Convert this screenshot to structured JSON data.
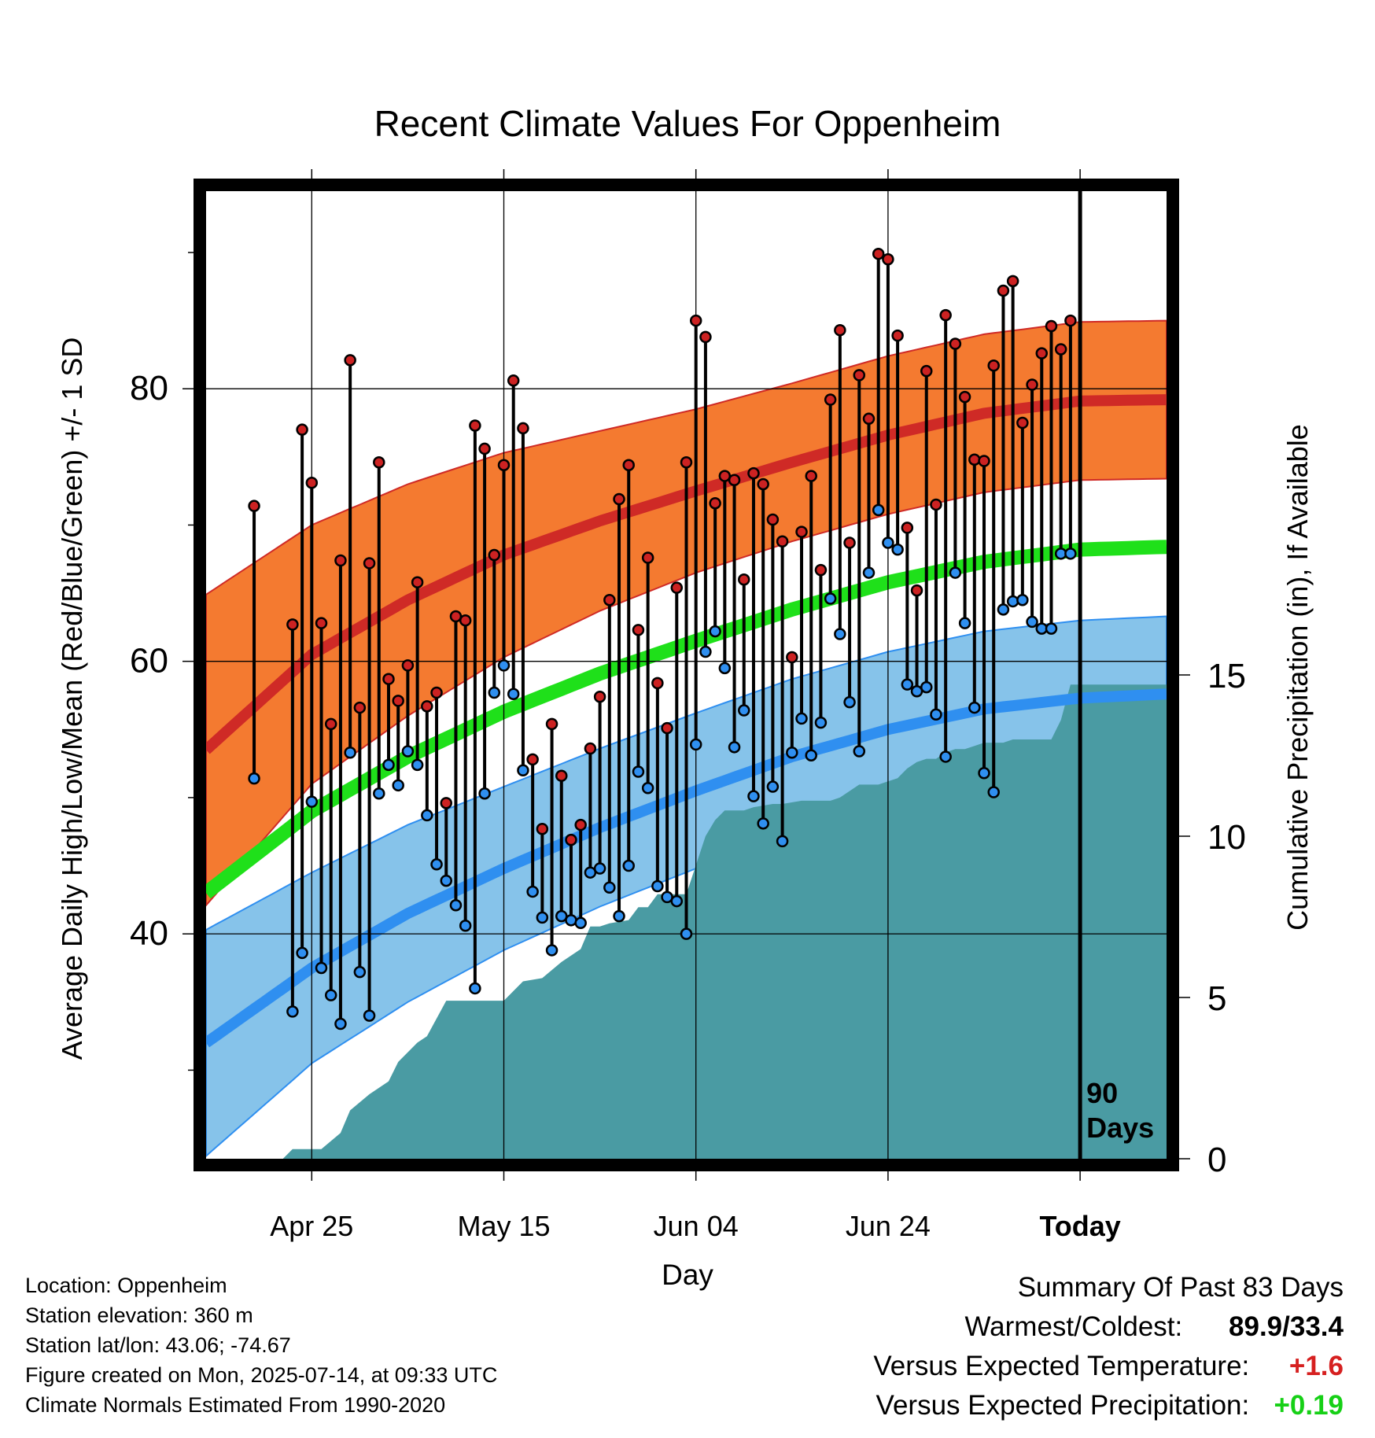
{
  "chart_data": {
    "type": "line",
    "title": "Recent Climate Values For Oppenheim",
    "xlabel": "Day",
    "ylabel": "Average Daily High/Low/Mean (Red/Blue/Green) +/- 1 SD",
    "y2label": "Cumulative Precipitation (in), If Available",
    "x_tick_labels": [
      "Apr 25",
      "May 15",
      "Jun 04",
      "Jun 24",
      "Today"
    ],
    "x_tick_days": [
      -80,
      -60,
      -40,
      -20,
      0
    ],
    "xlim": [
      -91,
      9
    ],
    "y_ticks": [
      40,
      60,
      80
    ],
    "ylim": [
      23.5,
      94.5
    ],
    "y2_ticks": [
      0,
      5,
      10,
      15
    ],
    "y2lim": [
      0,
      30
    ],
    "marker_label": "90 Days",
    "marker_day": 0,
    "grid": true,
    "colors": {
      "high": "#cf2a26",
      "high_band": "#f47a30",
      "low": "#2f8ff0",
      "low_band": "#86c3ea",
      "mean": "#1fe01a",
      "precip": "#4a9ba3",
      "dot_high": "#cc2222",
      "dot_low": "#2f8ff0"
    },
    "normals": {
      "days": [
        -91,
        -80,
        -70,
        -60,
        -50,
        -40,
        -30,
        -20,
        -10,
        0,
        9
      ],
      "high_mean": [
        53.5,
        60.5,
        64.5,
        67.8,
        70.3,
        72.5,
        74.6,
        76.6,
        78.2,
        79.1,
        79.2
      ],
      "high_sd": [
        11.4,
        9.5,
        8.5,
        7.5,
        6.6,
        6.0,
        5.8,
        5.8,
        5.8,
        5.8,
        5.8
      ],
      "low_mean": [
        32.0,
        37.5,
        41.5,
        44.8,
        47.8,
        50.5,
        53.0,
        55.0,
        56.5,
        57.3,
        57.6
      ],
      "low_sd": [
        8.3,
        7.0,
        6.5,
        6.0,
        5.8,
        5.7,
        5.7,
        5.7,
        5.7,
        5.7,
        5.7
      ],
      "mean": [
        43.0,
        49.0,
        53.0,
        56.3,
        59.1,
        61.5,
        63.8,
        65.8,
        67.3,
        68.2,
        68.4
      ]
    },
    "series": [
      {
        "name": "High",
        "x": [
          -86,
          -82,
          -81,
          -80,
          -79,
          -78,
          -77,
          -76,
          -75,
          -74,
          -73,
          -72,
          -71,
          -70,
          -69,
          -68,
          -67,
          -66,
          -65,
          -64,
          -63,
          -62,
          -61,
          -60,
          -59,
          -58,
          -57,
          -56,
          -55,
          -54,
          -53,
          -52,
          -51,
          -50,
          -49,
          -48,
          -47,
          -46,
          -45,
          -44,
          -43,
          -42,
          -41,
          -40,
          -39,
          -38,
          -37,
          -36,
          -35,
          -34,
          -33,
          -32,
          -31,
          -30,
          -29,
          -28,
          -27,
          -26,
          -25,
          -24,
          -23,
          -22,
          -21,
          -20,
          -19,
          -18,
          -17,
          -16,
          -15,
          -14,
          -13,
          -12,
          -11,
          -10,
          -9,
          -8,
          -7,
          -6,
          -5,
          -4,
          -3,
          -2,
          -1
        ],
        "values": [
          71.4,
          62.7,
          77.0,
          73.1,
          62.8,
          55.4,
          67.4,
          82.1,
          56.6,
          67.2,
          74.6,
          58.7,
          57.1,
          59.7,
          65.8,
          56.7,
          57.7,
          49.6,
          63.3,
          63.0,
          77.3,
          75.6,
          67.8,
          74.4,
          80.6,
          77.1,
          52.8,
          47.7,
          55.4,
          51.6,
          46.9,
          48.0,
          53.6,
          57.4,
          64.5,
          71.9,
          74.4,
          62.3,
          67.6,
          58.4,
          55.1,
          65.4,
          74.6,
          85.0,
          83.8,
          71.6,
          73.6,
          73.3,
          66.0,
          73.8,
          73.0,
          70.4,
          68.8,
          60.3,
          69.5,
          73.6,
          66.7,
          79.2,
          84.3,
          68.7,
          81.0,
          77.8,
          89.9,
          89.5,
          83.9,
          69.8,
          65.2,
          81.3,
          71.5,
          85.4,
          83.3,
          79.4,
          74.8,
          74.7,
          81.7,
          87.2,
          87.9,
          77.5,
          80.3,
          82.6,
          84.6,
          82.9,
          85.0
        ]
      },
      {
        "name": "Low",
        "x": [
          -86,
          -82,
          -81,
          -80,
          -79,
          -78,
          -77,
          -76,
          -75,
          -74,
          -73,
          -72,
          -71,
          -70,
          -69,
          -68,
          -67,
          -66,
          -65,
          -64,
          -63,
          -62,
          -61,
          -60,
          -59,
          -58,
          -57,
          -56,
          -55,
          -54,
          -53,
          -52,
          -51,
          -50,
          -49,
          -48,
          -47,
          -46,
          -45,
          -44,
          -43,
          -42,
          -41,
          -40,
          -39,
          -38,
          -37,
          -36,
          -35,
          -34,
          -33,
          -32,
          -31,
          -30,
          -29,
          -28,
          -27,
          -26,
          -25,
          -24,
          -23,
          -22,
          -21,
          -20,
          -19,
          -18,
          -17,
          -16,
          -15,
          -14,
          -13,
          -12,
          -11,
          -10,
          -9,
          -8,
          -7,
          -6,
          -5,
          -4,
          -3,
          -2,
          -1
        ],
        "values": [
          51.4,
          34.3,
          38.6,
          49.7,
          37.5,
          35.5,
          33.4,
          53.3,
          37.2,
          34.0,
          50.3,
          52.4,
          50.9,
          53.4,
          52.4,
          48.7,
          45.1,
          43.9,
          42.1,
          40.6,
          36.0,
          50.3,
          57.7,
          59.7,
          57.6,
          52.0,
          43.1,
          41.2,
          38.8,
          41.3,
          41.0,
          40.8,
          44.5,
          44.8,
          43.4,
          41.3,
          45.0,
          51.9,
          50.7,
          43.5,
          42.7,
          42.4,
          40.0,
          53.9,
          60.7,
          62.2,
          59.5,
          53.7,
          56.4,
          50.1,
          48.1,
          50.8,
          46.8,
          53.3,
          55.8,
          53.1,
          55.5,
          64.6,
          62.0,
          57.0,
          53.4,
          66.5,
          71.1,
          68.7,
          68.2,
          58.3,
          57.8,
          58.1,
          56.1,
          53.0,
          66.5,
          62.8,
          56.6,
          51.8,
          50.4,
          63.8,
          64.4,
          64.5,
          62.9,
          62.4,
          62.4,
          67.9,
          67.9
        ]
      }
    ],
    "precip": {
      "x": [
        -91,
        -83,
        -82,
        -79,
        -77,
        -76,
        -74,
        -72,
        -71,
        -69,
        -68,
        -66,
        -64,
        -63,
        -60,
        -58,
        -56,
        -54,
        -52,
        -51,
        -50,
        -49,
        -47,
        -46,
        -45,
        -44,
        -41,
        -40,
        -39,
        -38,
        -37,
        -36,
        -35,
        -34,
        -32,
        -31,
        -29,
        -28,
        -27,
        -26,
        -25,
        -23,
        -22,
        -21,
        -20,
        -19,
        -18,
        -17,
        -16,
        -15,
        -14,
        -13,
        -12,
        -11,
        -10,
        -9,
        -8,
        -7,
        -5,
        -3,
        -2,
        -1,
        0,
        9
      ],
      "values": [
        0.0,
        0.0,
        0.3,
        0.3,
        0.8,
        1.5,
        2.0,
        2.4,
        3.0,
        3.6,
        3.8,
        4.9,
        4.9,
        4.9,
        4.9,
        5.5,
        5.6,
        6.1,
        6.5,
        7.2,
        7.2,
        7.3,
        7.4,
        7.8,
        7.8,
        8.2,
        8.2,
        9.1,
        10.0,
        10.5,
        10.8,
        10.8,
        10.8,
        10.9,
        11.0,
        11.0,
        11.1,
        11.1,
        11.1,
        11.1,
        11.2,
        11.6,
        11.6,
        11.6,
        11.7,
        11.8,
        12.1,
        12.3,
        12.4,
        12.4,
        12.6,
        12.7,
        12.7,
        12.8,
        12.9,
        12.9,
        12.9,
        13.0,
        13.0,
        13.0,
        13.6,
        14.7,
        14.7,
        14.7
      ]
    }
  },
  "info": {
    "location": "Location: Oppenheim",
    "elevation": "Station elevation: 360 m",
    "latlon": "Station lat/lon: 43.06; -74.67",
    "created": "Figure created on Mon, 2025-07-14, at 09:33 UTC",
    "normals": "Climate Normals Estimated From 1990-2020"
  },
  "summary": {
    "title": "Summary Of Past 83 Days",
    "warmest_coldest_label": "Warmest/Coldest:",
    "warmest_coldest_value": "89.9/33.4",
    "temp_label": "Versus Expected Temperature:",
    "temp_value": "+1.6",
    "temp_color": "#d62020",
    "precip_label": "Versus Expected Precipitation:",
    "precip_value": "+0.19",
    "precip_color": "#16d016"
  }
}
